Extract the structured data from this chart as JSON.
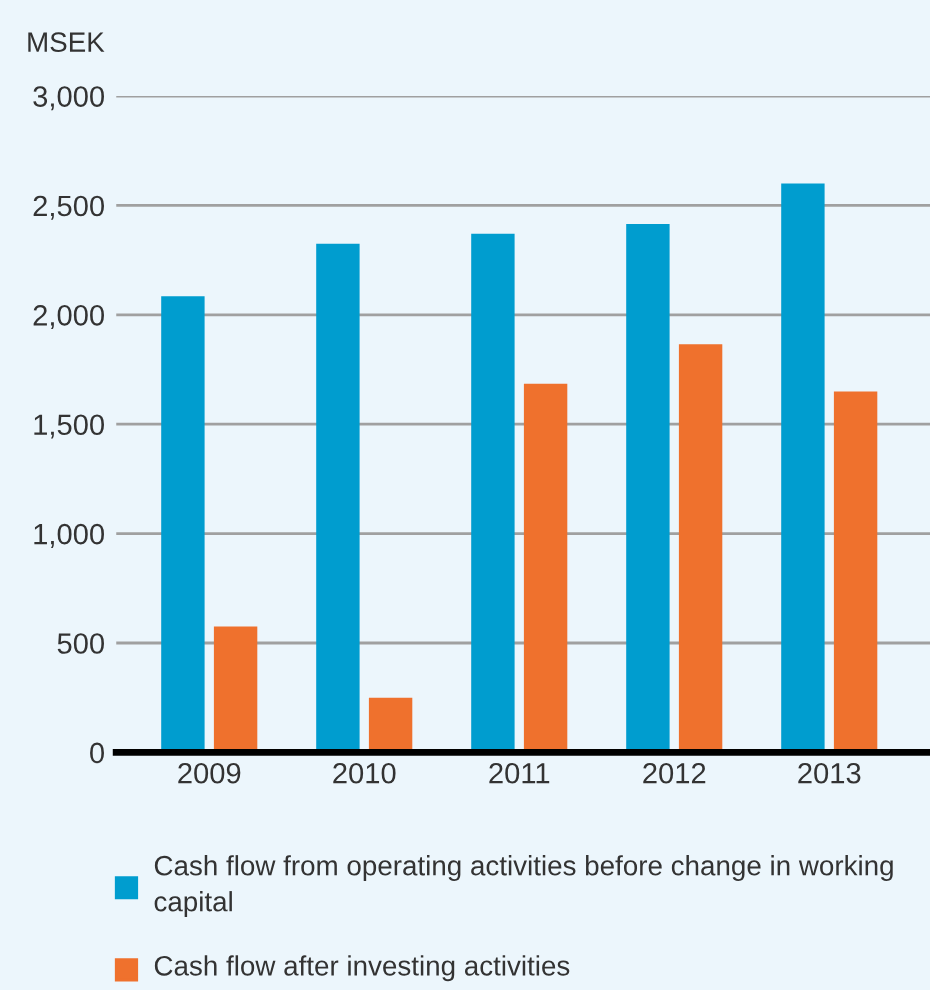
{
  "chart_data": {
    "type": "bar",
    "ylabel": "MSEK",
    "categories": [
      "2009",
      "2010",
      "2011",
      "2012",
      "2013"
    ],
    "series": [
      {
        "name": "Cash flow from operating activities before change in working capital",
        "color": "#009dcf",
        "values": [
          2085,
          2325,
          2370,
          2415,
          2600
        ]
      },
      {
        "name": "Cash flow after investing activities",
        "color": "#ef712d",
        "values": [
          575,
          250,
          1685,
          1865,
          1650
        ]
      }
    ],
    "ylim": [
      0,
      3000
    ],
    "yticks": [
      0,
      500,
      {
        "value": 1000,
        "label": "1,000"
      },
      {
        "value": 1500,
        "label": "1,500"
      },
      {
        "value": 2000,
        "label": "2,000"
      },
      {
        "value": 2500,
        "label": "2,500"
      },
      {
        "value": 3000,
        "label": "3,000"
      }
    ],
    "grid": "y",
    "legend": "bottom"
  }
}
